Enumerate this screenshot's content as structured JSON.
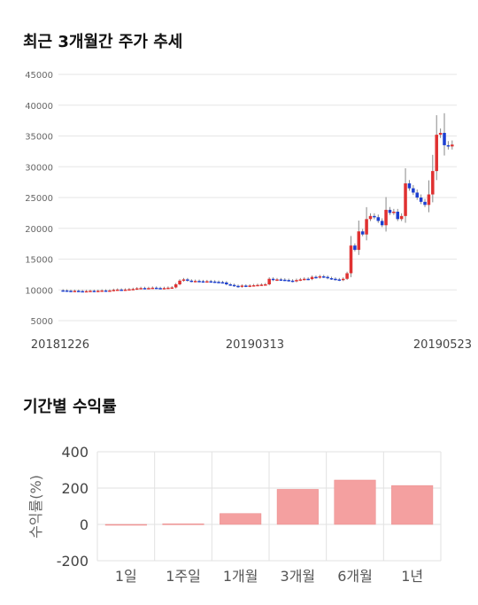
{
  "sections": {
    "price_title": "최근 3개월간 주가 추세",
    "return_title": "기간별 수익률"
  },
  "chart_data": [
    {
      "type": "candlestick",
      "title": "최근 3개월간 주가 추세",
      "ylim": [
        5000,
        45000
      ],
      "yticks": [
        "5000",
        "10000",
        "15000",
        "20000",
        "25000",
        "30000",
        "35000",
        "40000",
        "45000"
      ],
      "xtick_labels": [
        "20181226",
        "20190313",
        "20190523"
      ],
      "grid": true,
      "colors": {
        "up": "#e03131",
        "down": "#1c3fd1",
        "wick": "#888888"
      },
      "close": [
        9900,
        9850,
        9800,
        9850,
        9800,
        9750,
        9800,
        9850,
        9800,
        9850,
        9900,
        9850,
        9900,
        10000,
        10050,
        10000,
        10050,
        10100,
        10150,
        10250,
        10300,
        10250,
        10300,
        10350,
        10300,
        10250,
        10300,
        10350,
        10400,
        10900,
        11500,
        11700,
        11500,
        11400,
        11450,
        11400,
        11350,
        11400,
        11350,
        11300,
        11250,
        11200,
        10900,
        10800,
        10650,
        10500,
        10700,
        10600,
        10700,
        10750,
        10800,
        10850,
        10900,
        11800,
        11600,
        11700,
        11650,
        11600,
        11500,
        11400,
        11600,
        11700,
        11800,
        11750,
        12100,
        12000,
        12200,
        12100,
        11900,
        11800,
        11700,
        11600,
        11800,
        12700,
        17200,
        16500,
        19500,
        19000,
        21500,
        22000,
        21800,
        21200,
        20500,
        23000,
        22500,
        22700,
        21500,
        22000,
        27300,
        26500,
        25800,
        25000,
        24300,
        23800,
        25500,
        29300,
        35200,
        35500,
        33500,
        33300,
        33600
      ]
    },
    {
      "type": "bar",
      "title": "기간별 수익률",
      "ylabel": "수익률(%)",
      "ylim": [
        -200,
        400
      ],
      "yticks": [
        "400",
        "200",
        "0",
        "-200"
      ],
      "categories": [
        "1일",
        "1주일",
        "1개월",
        "3개월",
        "6개월",
        "1년"
      ],
      "values": [
        0,
        3,
        60,
        193,
        244,
        214
      ],
      "colors": {
        "bar": "#f4a0a0",
        "bar_edge": "#ea8a8a"
      }
    }
  ]
}
